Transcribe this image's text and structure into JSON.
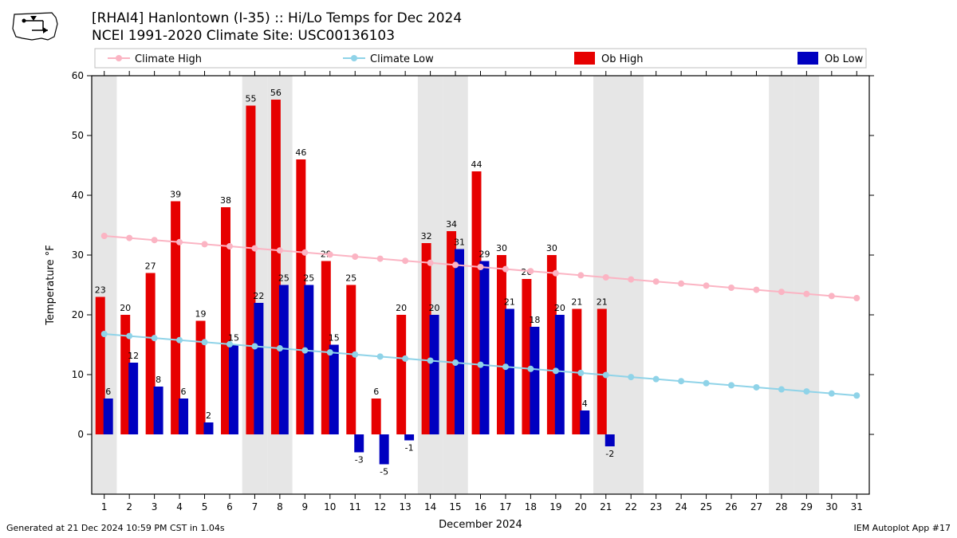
{
  "title_line1": "[RHAI4] Hanlontown (I-35) :: Hi/Lo Temps for Dec 2024",
  "title_line2": "NCEI 1991-2020 Climate Site: USC00136103",
  "footer_left": "Generated at 21 Dec 2024 10:59 PM CST in 1.04s",
  "footer_right": "IEM Autoplot App #17",
  "xlabel": "December 2024",
  "ylabel": "Temperature °F",
  "legend": {
    "climate_high": "Climate High",
    "climate_low": "Climate Low",
    "ob_high": "Ob High",
    "ob_low": "Ob Low"
  },
  "colors": {
    "climate_high": "#fbb4c3",
    "climate_low": "#8fd3e8",
    "ob_high": "#e60000",
    "ob_low": "#0000c0",
    "weekend_band": "#e6e6e6",
    "axis": "#000000",
    "grid": "#000000",
    "bg": "#ffffff",
    "title": "#000000"
  },
  "chart": {
    "type": "bar_and_line",
    "ylim": [
      -10,
      60
    ],
    "ytick_step": 10,
    "days": [
      1,
      2,
      3,
      4,
      5,
      6,
      7,
      8,
      9,
      10,
      11,
      12,
      13,
      14,
      15,
      16,
      17,
      18,
      19,
      20,
      21,
      22,
      23,
      24,
      25,
      26,
      27,
      28,
      29,
      30,
      31
    ],
    "weekend_days": [
      1,
      7,
      8,
      14,
      15,
      21,
      22,
      28,
      29
    ],
    "ob_high": [
      23,
      20,
      27,
      39,
      19,
      38,
      55,
      56,
      46,
      29,
      25,
      6,
      20,
      32,
      34,
      44,
      30,
      26,
      30,
      21,
      21
    ],
    "ob_low": [
      6,
      12,
      8,
      6,
      2,
      15,
      22,
      25,
      25,
      15,
      -3,
      -5,
      -1,
      20,
      31,
      29,
      21,
      18,
      20,
      4,
      -2
    ],
    "climate_high_start": 33.2,
    "climate_high_end": 22.8,
    "climate_low_start": 16.8,
    "climate_low_end": 6.5,
    "bar_width": 0.38,
    "title_fontsize": 17,
    "label_fontsize": 13,
    "tick_fontsize": 12,
    "value_label_fontsize": 11,
    "legend_fontsize": 13
  }
}
